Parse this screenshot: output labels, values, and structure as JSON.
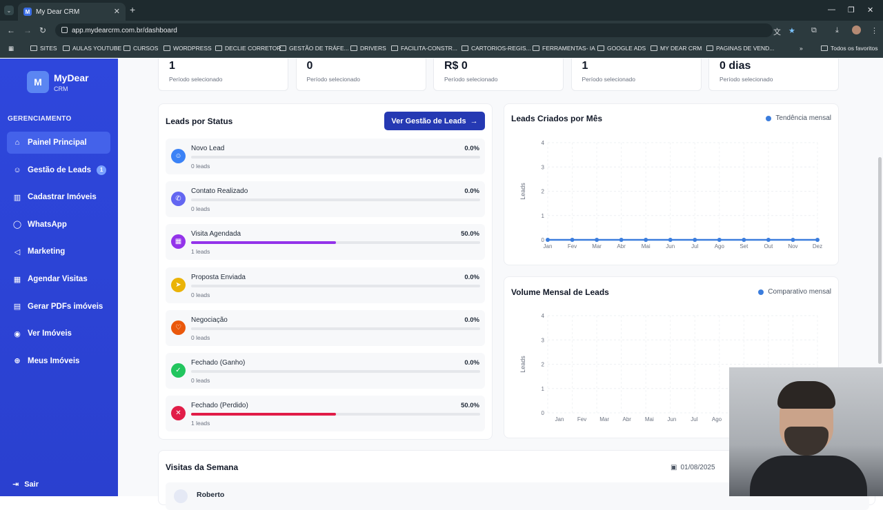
{
  "browser": {
    "tab_title": "My Dear CRM",
    "tab_favicon": "M",
    "url": "app.mydearcrm.com.br/dashboard",
    "bookmarks": [
      "SITES",
      "AULAS YOUTUBE",
      "CURSOS",
      "WORDPRESS",
      "DECLIE CORRETOR",
      "GESTÃO DE TRÁFE...",
      "DRIVERS",
      "FACILITA-CONSTR...",
      "CARTORIOS-REGIS...",
      "FERRAMENTAS- IA",
      "GOOGLE ADS",
      "MY DEAR CRM",
      "PAGINAS DE VEND..."
    ],
    "all_bookmarks": "Todos os favoritos"
  },
  "sidebar": {
    "logo_letter": "M",
    "logo_title": "MyDear",
    "logo_sub": "CRM",
    "section": "GERENCIAMENTO",
    "items": [
      {
        "label": "Painel Principal",
        "icon": "home-icon",
        "active": true
      },
      {
        "label": "Gestão de Leads",
        "icon": "users-icon",
        "badge": "1"
      },
      {
        "label": "Cadastrar Imóveis",
        "icon": "building-icon"
      },
      {
        "label": "WhatsApp",
        "icon": "whatsapp-icon"
      },
      {
        "label": "Marketing",
        "icon": "megaphone-icon"
      },
      {
        "label": "Agendar Visitas",
        "icon": "calendar-icon"
      },
      {
        "label": "Gerar PDFs imóveis",
        "icon": "document-icon"
      },
      {
        "label": "Ver Imóveis",
        "icon": "eye-icon"
      },
      {
        "label": "Meus Imóveis",
        "icon": "globe-icon"
      }
    ],
    "logout": "Sair"
  },
  "stats": [
    {
      "value": "1",
      "label": "Período selecionado"
    },
    {
      "value": "0",
      "label": "Período selecionado"
    },
    {
      "value": "R$ 0",
      "label": "Período selecionado"
    },
    {
      "value": "1",
      "label": "Período selecionado"
    },
    {
      "value": "0 dias",
      "label": "Período selecionado"
    }
  ],
  "leads_status": {
    "title": "Leads por Status",
    "button": "Ver Gestão de Leads",
    "rows": [
      {
        "name": "Novo Lead",
        "pct": "0.0%",
        "count": "0 leads",
        "value": 0,
        "color": "#3b82f6"
      },
      {
        "name": "Contato Realizado",
        "pct": "0.0%",
        "count": "0 leads",
        "value": 0,
        "color": "#6366f1"
      },
      {
        "name": "Visita Agendada",
        "pct": "50.0%",
        "count": "1 leads",
        "value": 50,
        "color": "#9333ea"
      },
      {
        "name": "Proposta Enviada",
        "pct": "0.0%",
        "count": "0 leads",
        "value": 0,
        "color": "#eab308"
      },
      {
        "name": "Negociação",
        "pct": "0.0%",
        "count": "0 leads",
        "value": 0,
        "color": "#ea580c"
      },
      {
        "name": "Fechado (Ganho)",
        "pct": "0.0%",
        "count": "0 leads",
        "value": 0,
        "color": "#22c55e"
      },
      {
        "name": "Fechado (Perdido)",
        "pct": "50.0%",
        "count": "1 leads",
        "value": 50,
        "color": "#e11d48"
      }
    ]
  },
  "chart_data": [
    {
      "type": "line",
      "title": "Leads Criados por Mês",
      "legend": "Tendência mensal",
      "ylabel": "Leads",
      "categories": [
        "Jan",
        "Fev",
        "Mar",
        "Abr",
        "Mai",
        "Jun",
        "Jul",
        "Ago",
        "Set",
        "Out",
        "Nov",
        "Dez"
      ],
      "values": [
        0,
        0,
        0,
        0,
        0,
        0,
        0,
        0,
        0,
        0,
        0,
        0
      ],
      "yticks": [
        "0",
        "1",
        "2",
        "3",
        "4"
      ],
      "ylim": [
        0,
        4
      ],
      "color": "#3b7ddd"
    },
    {
      "type": "bar",
      "title": "Volume Mensal de Leads",
      "legend": "Comparativo mensal",
      "ylabel": "Leads",
      "categories": [
        "Jan",
        "Fev",
        "Mar",
        "Abr",
        "Mai",
        "Jun",
        "Jul",
        "Ago"
      ],
      "values": [
        0,
        0,
        0,
        0,
        0,
        0,
        0,
        0
      ],
      "yticks": [
        "0",
        "1",
        "2",
        "3",
        "4"
      ],
      "ylim": [
        0,
        4
      ],
      "color": "#3b7ddd"
    }
  ],
  "visits": {
    "title": "Visitas da Semana",
    "date": "01/08/2025",
    "first_name": "Roberto"
  }
}
